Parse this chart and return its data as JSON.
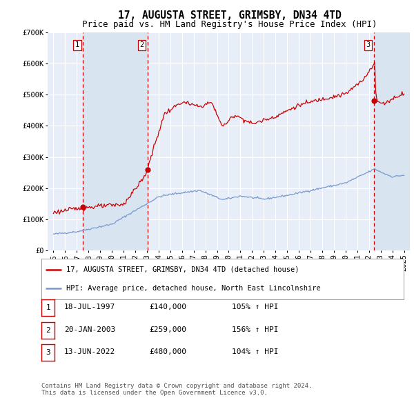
{
  "title": "17, AUGUSTA STREET, GRIMSBY, DN34 4TD",
  "subtitle": "Price paid vs. HM Land Registry's House Price Index (HPI)",
  "ylim": [
    0,
    700000
  ],
  "yticks": [
    0,
    100000,
    200000,
    300000,
    400000,
    500000,
    600000,
    700000
  ],
  "ytick_labels": [
    "£0",
    "£100K",
    "£200K",
    "£300K",
    "£400K",
    "£500K",
    "£600K",
    "£700K"
  ],
  "background_color": "#ffffff",
  "plot_bg_color": "#e8eef8",
  "grid_color": "#ffffff",
  "sale_line_color": "#cc0000",
  "hpi_line_color": "#7799cc",
  "sale_dot_color": "#cc0000",
  "vline_color": "#cc0000",
  "shade_color": "#d8e4f0",
  "sales": [
    {
      "date_num": 1997.54,
      "price": 140000,
      "label": "1"
    },
    {
      "date_num": 2003.05,
      "price": 259000,
      "label": "2"
    },
    {
      "date_num": 2022.44,
      "price": 480000,
      "label": "3"
    }
  ],
  "legend_entries": [
    {
      "label": "17, AUGUSTA STREET, GRIMSBY, DN34 4TD (detached house)",
      "color": "#cc0000"
    },
    {
      "label": "HPI: Average price, detached house, North East Lincolnshire",
      "color": "#7799cc"
    }
  ],
  "table_rows": [
    {
      "num": "1",
      "date": "18-JUL-1997",
      "price": "£140,000",
      "hpi": "105% ↑ HPI"
    },
    {
      "num": "2",
      "date": "20-JAN-2003",
      "price": "£259,000",
      "hpi": "156% ↑ HPI"
    },
    {
      "num": "3",
      "date": "13-JUN-2022",
      "price": "£480,000",
      "hpi": "104% ↑ HPI"
    }
  ],
  "footer": "Contains HM Land Registry data © Crown copyright and database right 2024.\nThis data is licensed under the Open Government Licence v3.0.",
  "title_fontsize": 10.5,
  "subtitle_fontsize": 9,
  "tick_fontsize": 7.5,
  "legend_fontsize": 7.5,
  "table_fontsize": 8,
  "footer_fontsize": 6.5
}
